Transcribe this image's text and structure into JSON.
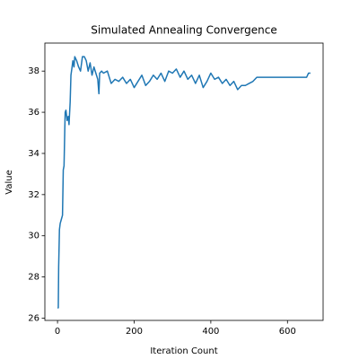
{
  "chart_data": {
    "type": "line",
    "title": "Simulated Annealing Convergence",
    "x_label": "Iteration Count",
    "y_label": "Value",
    "x": [
      0,
      2,
      3,
      5,
      7,
      10,
      13,
      15,
      17,
      19,
      20,
      22,
      25,
      28,
      30,
      33,
      35,
      38,
      40,
      43,
      45,
      50,
      55,
      60,
      65,
      70,
      75,
      80,
      85,
      90,
      95,
      100,
      105,
      108,
      110,
      115,
      120,
      130,
      140,
      150,
      160,
      170,
      180,
      190,
      200,
      210,
      220,
      230,
      240,
      250,
      260,
      270,
      280,
      290,
      300,
      310,
      320,
      330,
      340,
      350,
      360,
      370,
      380,
      390,
      400,
      410,
      420,
      430,
      440,
      450,
      460,
      470,
      480,
      490,
      500,
      510,
      520,
      530,
      540,
      560,
      580,
      600,
      620,
      640,
      650,
      655,
      660
    ],
    "series": [
      {
        "name": "Value",
        "color": "#1f77b4",
        "values": [
          26.5,
          26.5,
          28.5,
          30.3,
          30.6,
          30.8,
          31.0,
          33.2,
          33.4,
          35.2,
          36.0,
          36.1,
          35.6,
          35.8,
          35.4,
          36.5,
          37.8,
          38.2,
          38.5,
          38.2,
          38.7,
          38.5,
          38.2,
          38.0,
          38.7,
          38.7,
          38.5,
          38.0,
          38.4,
          37.8,
          38.2,
          37.9,
          37.6,
          36.9,
          37.9,
          38.0,
          37.9,
          38.0,
          37.4,
          37.6,
          37.5,
          37.7,
          37.4,
          37.6,
          37.2,
          37.5,
          37.8,
          37.3,
          37.5,
          37.8,
          37.6,
          37.9,
          37.5,
          38.0,
          37.9,
          38.1,
          37.7,
          38.0,
          37.6,
          37.8,
          37.4,
          37.8,
          37.2,
          37.5,
          37.9,
          37.6,
          37.7,
          37.4,
          37.6,
          37.3,
          37.5,
          37.1,
          37.3,
          37.3,
          37.4,
          37.5,
          37.7,
          37.7,
          37.7,
          37.7,
          37.7,
          37.7,
          37.7,
          37.7,
          37.7,
          37.9,
          37.9
        ]
      }
    ],
    "xlim": [
      -33,
      693
    ],
    "ylim": [
      25.89,
      39.36
    ],
    "xticks": [
      0,
      200,
      400,
      600
    ],
    "yticks": [
      26,
      28,
      30,
      32,
      34,
      36,
      38
    ]
  }
}
